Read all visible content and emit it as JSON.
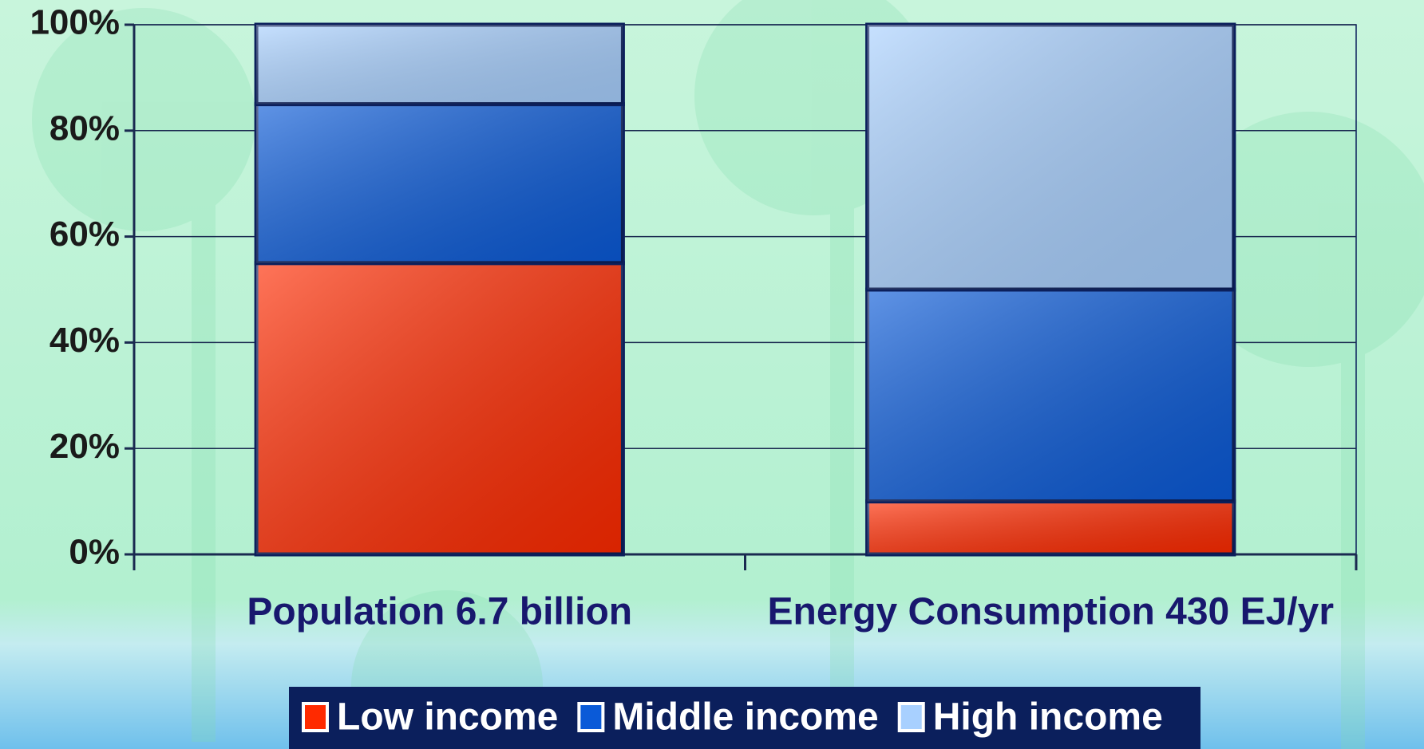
{
  "chart_data": {
    "type": "stacked_bar",
    "categories": [
      "Population 6.7 billion",
      "Energy Consumption 430 EJ/yr"
    ],
    "series": [
      {
        "name": "Low income",
        "color": "#ff2a00",
        "values": [
          55,
          10
        ]
      },
      {
        "name": "Middle income",
        "color": "#0a5ad8",
        "values": [
          30,
          40
        ]
      },
      {
        "name": "High income",
        "color": "#a8d0ff",
        "values": [
          15,
          50
        ]
      }
    ],
    "ylim": [
      0,
      100
    ],
    "yticks": [
      {
        "value": 0,
        "label": "0%"
      },
      {
        "value": 20,
        "label": "20%"
      },
      {
        "value": 40,
        "label": "40%"
      },
      {
        "value": 60,
        "label": "60%"
      },
      {
        "value": 80,
        "label": "80%"
      },
      {
        "value": 100,
        "label": "100%"
      }
    ],
    "grid": true,
    "legend": "bottom"
  }
}
